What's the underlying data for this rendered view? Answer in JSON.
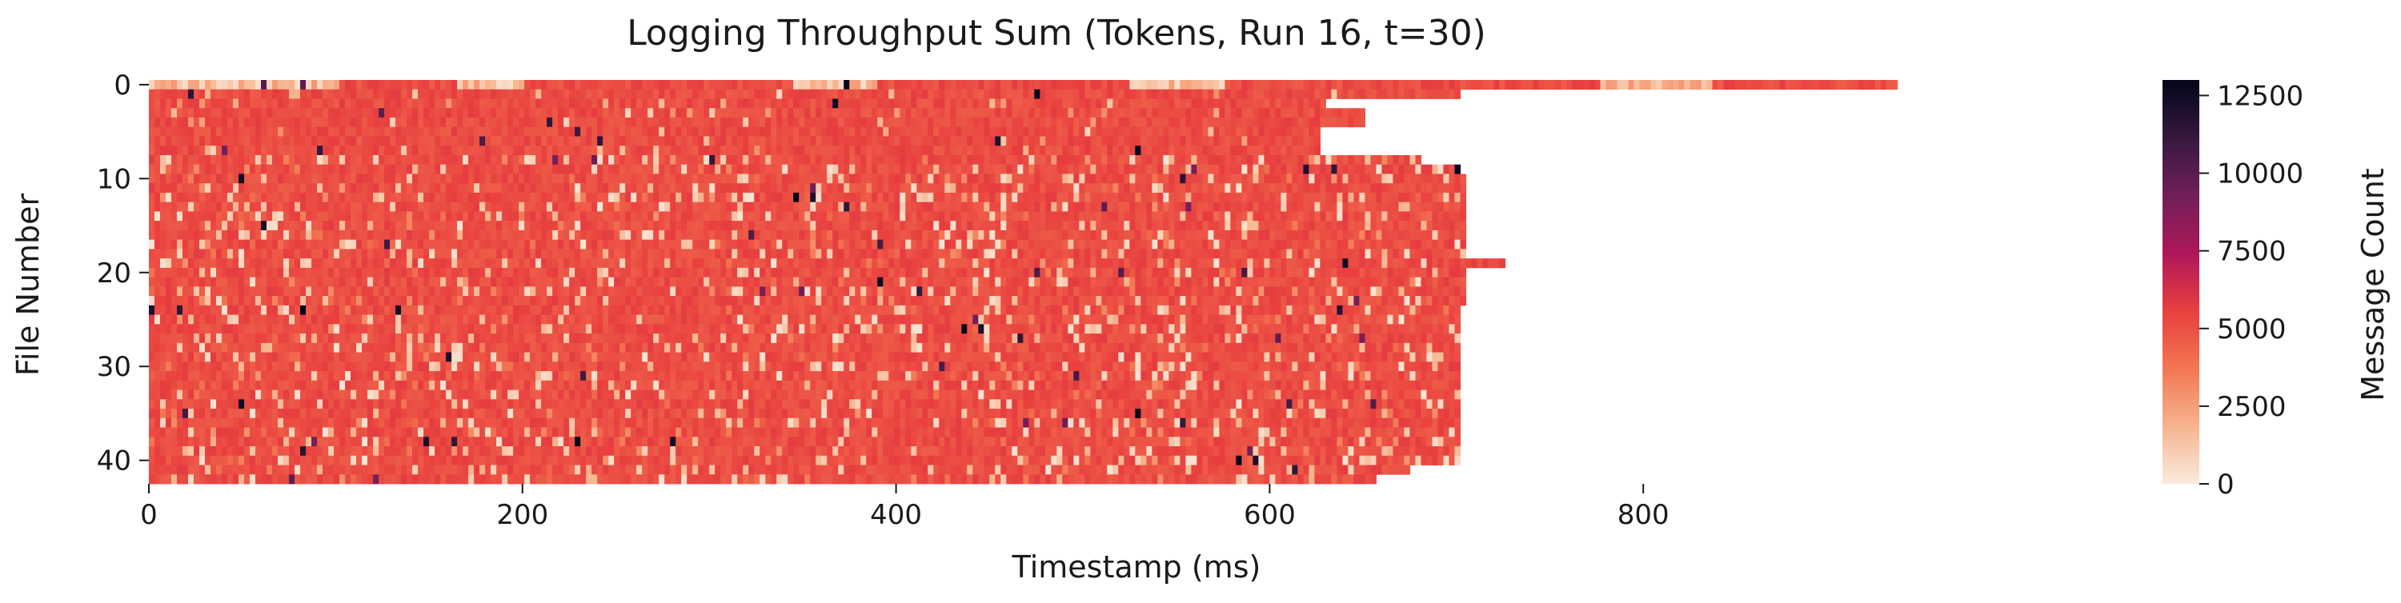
{
  "chart_data": {
    "type": "heatmap",
    "title": "Logging Throughput Sum (Tokens, Run 16, t=30)",
    "xlabel": "Timestamp (ms)",
    "ylabel": "File Number",
    "xlim": [
      0,
      1000
    ],
    "ylim": [
      0,
      43
    ],
    "x_ticks": [
      0,
      200,
      400,
      600,
      800
    ],
    "y_ticks": [
      0,
      10,
      20,
      30,
      40
    ],
    "colorbar": {
      "label": "Message Count",
      "min": 0,
      "max": 13000,
      "ticks": [
        0,
        2500,
        5000,
        7500,
        10000,
        12500
      ],
      "tick_labels": [
        "0",
        "2500",
        "5000",
        "7500",
        "10000",
        "12500"
      ],
      "colors": [
        "#faebdd",
        "#f6b48f",
        "#f37651",
        "#e83f3f",
        "#ae1759",
        "#701f57",
        "#36193e",
        "#03051a"
      ]
    },
    "typical_value": 5200,
    "row_extent_ms": [
      {
        "rows": [
          0,
          0
        ],
        "end": 935
      },
      {
        "rows": [
          1,
          1
        ],
        "end": 700
      },
      {
        "rows": [
          2,
          2
        ],
        "end": 630
      },
      {
        "rows": [
          3,
          4
        ],
        "end": 650
      },
      {
        "rows": [
          5,
          7
        ],
        "end": 625
      },
      {
        "rows": [
          8,
          8
        ],
        "end": 680
      },
      {
        "rows": [
          9,
          9
        ],
        "end": 700
      },
      {
        "rows": [
          10,
          18
        ],
        "end": 705
      },
      {
        "rows": [
          19,
          19
        ],
        "end": 725
      },
      {
        "rows": [
          20,
          23
        ],
        "end": 703
      },
      {
        "rows": [
          24,
          40
        ],
        "end": 700
      },
      {
        "rows": [
          41,
          41
        ],
        "end": 675
      },
      {
        "rows": [
          42,
          42
        ],
        "end": 655
      }
    ],
    "row0_low_intervals_ms": [
      [
        0,
        100
      ],
      [
        165,
        200
      ],
      [
        345,
        390
      ],
      [
        525,
        575
      ],
      [
        775,
        835
      ]
    ]
  }
}
